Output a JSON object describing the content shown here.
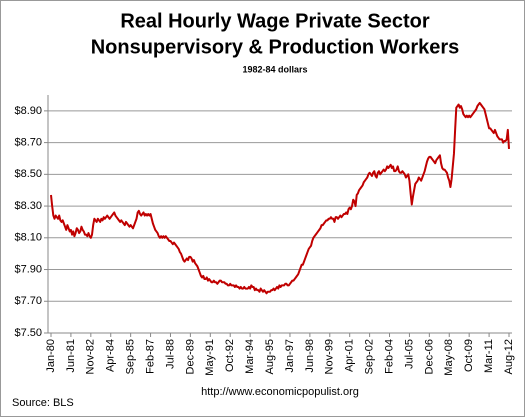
{
  "chart_data": {
    "type": "line",
    "title": [
      "Real Hourly Wage Private Sector",
      "Nonsupervisory & Production Workers"
    ],
    "subtitle": "1982-84 dollars",
    "annotations": [
      "Source:  BLS",
      "http://www.economicpopulist.org"
    ],
    "color": "#c00000",
    "grid": true,
    "ylim": [
      7.5,
      9.0
    ],
    "yticks": [
      {
        "value": 7.5,
        "label": "$7.50"
      },
      {
        "value": 7.7,
        "label": "$7.70"
      },
      {
        "value": 7.9,
        "label": "$7.90"
      },
      {
        "value": 8.1,
        "label": "$8.10"
      },
      {
        "value": 8.3,
        "label": "$8.30"
      },
      {
        "value": 8.5,
        "label": "$8.50"
      },
      {
        "value": 8.7,
        "label": "$8.70"
      },
      {
        "value": 8.9,
        "label": "$8.90"
      }
    ],
    "categories": [
      "Jan-80",
      null,
      null,
      null,
      null,
      null,
      null,
      null,
      null,
      null,
      null,
      null,
      null,
      null,
      null,
      null,
      null,
      "Jun-81",
      null,
      null,
      null,
      null,
      null,
      null,
      null,
      null,
      null,
      null,
      null,
      null,
      null,
      null,
      null,
      null,
      "Nov-82",
      null,
      null,
      null,
      null,
      null,
      null,
      null,
      null,
      null,
      null,
      null,
      null,
      null,
      null,
      null,
      null,
      "Apr-84",
      null,
      null,
      null,
      null,
      null,
      null,
      null,
      null,
      null,
      null,
      null,
      null,
      null,
      null,
      null,
      null,
      "Sep-85",
      null,
      null,
      null,
      null,
      null,
      null,
      null,
      null,
      null,
      null,
      null,
      null,
      null,
      null,
      null,
      null,
      "Feb-87",
      null,
      null,
      null,
      null,
      null,
      null,
      null,
      null,
      null,
      null,
      null,
      null,
      null,
      null,
      null,
      null,
      "Jul-88",
      null,
      null,
      null,
      null,
      null,
      null,
      null,
      null,
      null,
      null,
      null,
      null,
      null,
      null,
      null,
      null,
      "Dec-89",
      null,
      null,
      null,
      null,
      null,
      null,
      null,
      null,
      null,
      null,
      null,
      null,
      null,
      null,
      null,
      null,
      "May-91",
      null,
      null,
      null,
      null,
      null,
      null,
      null,
      null,
      null,
      null,
      null,
      null,
      null,
      null,
      null,
      null,
      "Oct-92",
      null,
      null,
      null,
      null,
      null,
      null,
      null,
      null,
      null,
      null,
      null,
      null,
      null,
      null,
      null,
      null,
      "Mar-94",
      null,
      null,
      null,
      null,
      null,
      null,
      null,
      null,
      null,
      null,
      null,
      null,
      null,
      null,
      null,
      null,
      "Aug-95",
      null,
      null,
      null,
      null,
      null,
      null,
      null,
      null,
      null,
      null,
      null,
      null,
      null,
      null,
      null,
      null,
      "Jan-97",
      null,
      null,
      null,
      null,
      null,
      null,
      null,
      null,
      null,
      null,
      null,
      null,
      null,
      null,
      null,
      null,
      "Jun-98",
      null,
      null,
      null,
      null,
      null,
      null,
      null,
      null,
      null,
      null,
      null,
      null,
      null,
      null,
      null,
      null,
      "Nov-99",
      null,
      null,
      null,
      null,
      null,
      null,
      null,
      null,
      null,
      null,
      null,
      null,
      null,
      null,
      null,
      null,
      "Apr-01",
      null,
      null,
      null,
      null,
      null,
      null,
      null,
      null,
      null,
      null,
      null,
      null,
      null,
      null,
      null,
      null,
      "Sep-02",
      null,
      null,
      null,
      null,
      null,
      null,
      null,
      null,
      null,
      null,
      null,
      null,
      null,
      null,
      null,
      null,
      "Feb-04",
      null,
      null,
      null,
      null,
      null,
      null,
      null,
      null,
      null,
      null,
      null,
      null,
      null,
      null,
      null,
      null,
      "Jul-05",
      null,
      null,
      null,
      null,
      null,
      null,
      null,
      null,
      null,
      null,
      null,
      null,
      null,
      null,
      null,
      null,
      "Dec-06",
      null,
      null,
      null,
      null,
      null,
      null,
      null,
      null,
      null,
      null,
      null,
      null,
      null,
      null,
      null,
      null,
      "May-08",
      null,
      null,
      null,
      null,
      null,
      null,
      null,
      null,
      null,
      null,
      null,
      null,
      null,
      null,
      null,
      null,
      "Oct-09",
      null,
      null,
      null,
      null,
      null,
      null,
      null,
      null,
      null,
      null,
      null,
      null,
      null,
      null,
      null,
      null,
      "Mar-11",
      null,
      null,
      null,
      null,
      null,
      null,
      null,
      null,
      null,
      null,
      null,
      null,
      null,
      null,
      null,
      null,
      "Aug-12"
    ],
    "values": [
      8.37,
      8.3,
      8.24,
      8.22,
      8.24,
      8.23,
      8.22,
      8.24,
      8.21,
      8.2,
      8.21,
      8.19,
      8.17,
      8.15,
      8.18,
      8.16,
      8.14,
      8.15,
      8.12,
      8.14,
      8.11,
      8.13,
      8.16,
      8.15,
      8.13,
      8.14,
      8.17,
      8.15,
      8.14,
      8.12,
      8.12,
      8.11,
      8.13,
      8.11,
      8.1,
      8.12,
      8.18,
      8.22,
      8.21,
      8.2,
      8.22,
      8.21,
      8.2,
      8.22,
      8.21,
      8.23,
      8.22,
      8.23,
      8.24,
      8.23,
      8.22,
      8.23,
      8.24,
      8.25,
      8.26,
      8.24,
      8.23,
      8.22,
      8.21,
      8.2,
      8.21,
      8.2,
      8.19,
      8.18,
      8.2,
      8.19,
      8.18,
      8.17,
      8.18,
      8.17,
      8.16,
      8.18,
      8.2,
      8.22,
      8.26,
      8.27,
      8.25,
      8.24,
      8.25,
      8.26,
      8.24,
      8.25,
      8.24,
      8.25,
      8.24,
      8.25,
      8.22,
      8.19,
      8.17,
      8.15,
      8.14,
      8.13,
      8.11,
      8.1,
      8.11,
      8.1,
      8.11,
      8.1,
      8.11,
      8.1,
      8.09,
      8.08,
      8.08,
      8.07,
      8.06,
      8.07,
      8.06,
      8.05,
      8.04,
      8.03,
      8.01,
      8.0,
      7.98,
      7.96,
      7.95,
      7.96,
      7.97,
      7.96,
      7.98,
      7.98,
      7.97,
      7.95,
      7.96,
      7.94,
      7.93,
      7.92,
      7.9,
      7.88,
      7.86,
      7.85,
      7.86,
      7.84,
      7.84,
      7.85,
      7.83,
      7.84,
      7.83,
      7.82,
      7.82,
      7.83,
      7.82,
      7.82,
      7.81,
      7.82,
      7.83,
      7.83,
      7.82,
      7.82,
      7.82,
      7.81,
      7.81,
      7.8,
      7.8,
      7.81,
      7.8,
      7.8,
      7.8,
      7.79,
      7.8,
      7.79,
      7.79,
      7.78,
      7.79,
      7.78,
      7.78,
      7.79,
      7.78,
      7.78,
      7.78,
      7.79,
      7.78,
      7.8,
      7.79,
      7.79,
      7.77,
      7.78,
      7.77,
      7.77,
      7.76,
      7.78,
      7.77,
      7.76,
      7.77,
      7.76,
      7.75,
      7.76,
      7.76,
      7.76,
      7.77,
      7.77,
      7.78,
      7.77,
      7.78,
      7.79,
      7.78,
      7.8,
      7.79,
      7.8,
      7.8,
      7.8,
      7.81,
      7.81,
      7.8,
      7.8,
      7.81,
      7.82,
      7.83,
      7.83,
      7.84,
      7.85,
      7.86,
      7.87,
      7.89,
      7.91,
      7.93,
      7.93,
      7.95,
      7.97,
      7.99,
      8.01,
      8.03,
      8.04,
      8.05,
      8.08,
      8.1,
      8.11,
      8.12,
      8.13,
      8.14,
      8.15,
      8.16,
      8.18,
      8.18,
      8.19,
      8.2,
      8.21,
      8.21,
      8.22,
      8.22,
      8.23,
      8.22,
      8.22,
      8.2,
      8.23,
      8.23,
      8.22,
      8.23,
      8.24,
      8.23,
      8.24,
      8.25,
      8.25,
      8.26,
      8.25,
      8.28,
      8.29,
      8.28,
      8.3,
      8.34,
      8.33,
      8.3,
      8.37,
      8.38,
      8.4,
      8.41,
      8.42,
      8.43,
      8.45,
      8.46,
      8.47,
      8.48,
      8.5,
      8.51,
      8.5,
      8.49,
      8.51,
      8.52,
      8.49,
      8.48,
      8.51,
      8.52,
      8.5,
      8.51,
      8.52,
      8.53,
      8.52,
      8.53,
      8.55,
      8.54,
      8.55,
      8.56,
      8.54,
      8.55,
      8.52,
      8.52,
      8.53,
      8.55,
      8.52,
      8.51,
      8.51,
      8.52,
      8.51,
      8.5,
      8.48,
      8.49,
      8.5,
      8.46,
      8.38,
      8.31,
      8.36,
      8.4,
      8.44,
      8.45,
      8.46,
      8.48,
      8.47,
      8.46,
      8.48,
      8.5,
      8.52,
      8.55,
      8.58,
      8.6,
      8.61,
      8.61,
      8.6,
      8.59,
      8.58,
      8.57,
      8.59,
      8.6,
      8.61,
      8.62,
      8.57,
      8.54,
      8.53,
      8.53,
      8.52,
      8.51,
      8.48,
      8.46,
      8.42,
      8.47,
      8.55,
      8.63,
      8.78,
      8.92,
      8.93,
      8.94,
      8.92,
      8.93,
      8.91,
      8.88,
      8.87,
      8.86,
      8.87,
      8.86,
      8.87,
      8.86,
      8.87,
      8.88,
      8.89,
      8.9,
      8.91,
      8.93,
      8.94,
      8.95,
      8.94,
      8.93,
      8.92,
      8.91,
      8.88,
      8.85,
      8.82,
      8.79,
      8.79,
      8.78,
      8.77,
      8.76,
      8.78,
      8.76,
      8.74,
      8.73,
      8.72,
      8.72,
      8.72,
      8.7,
      8.71,
      8.71,
      8.72,
      8.78,
      8.66
    ]
  }
}
